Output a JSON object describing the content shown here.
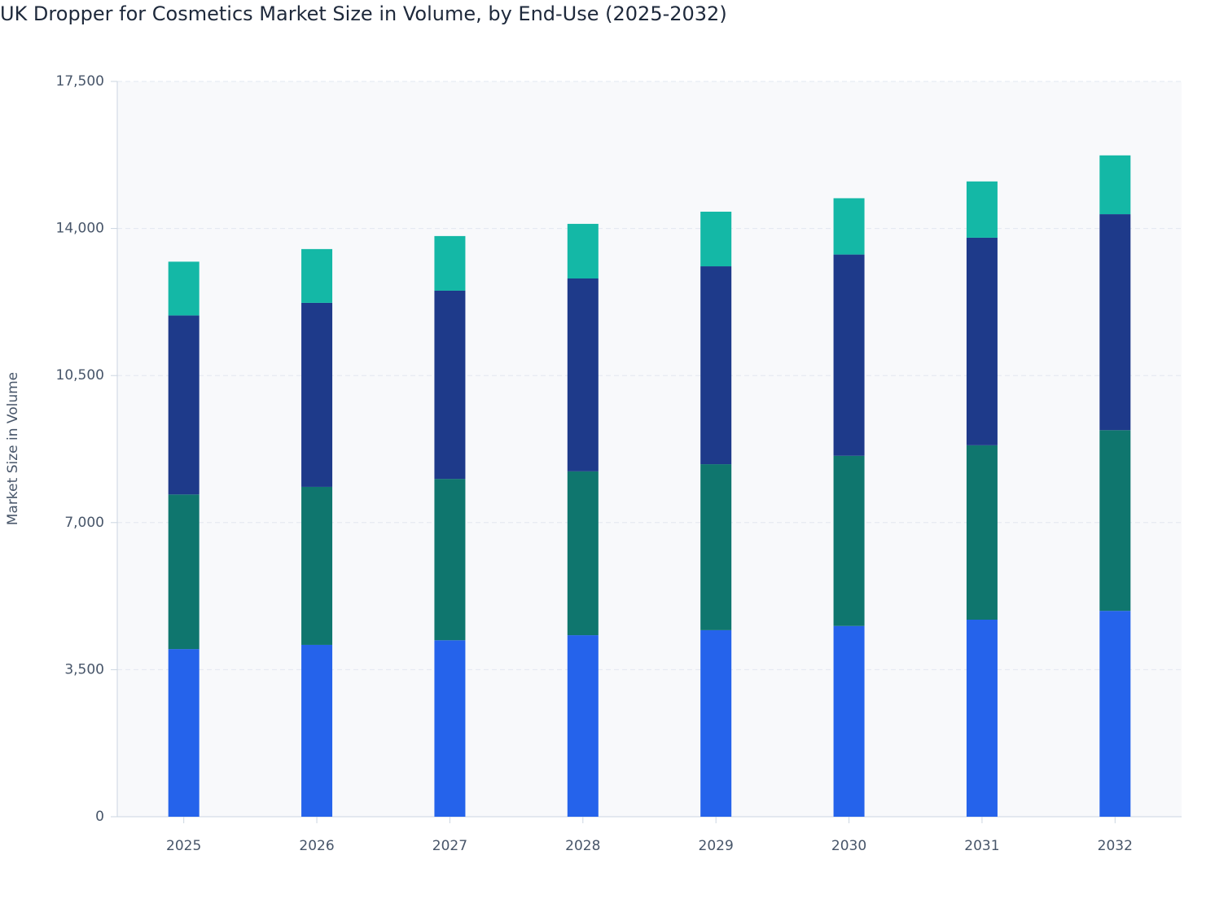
{
  "chart_data": {
    "type": "stacked_bar",
    "title": "UK Dropper for Cosmetics Market Size in Volume, by End-Use (2025-2032)",
    "y_label": "Market Size in Volume",
    "categories": [
      "2025",
      "2026",
      "2027",
      "2028",
      "2029",
      "2030",
      "2031",
      "2032"
    ],
    "series": [
      {
        "color": "#2563eb",
        "values": [
          3990,
          4090,
          4200,
          4320,
          4440,
          4540,
          4690,
          4900
        ]
      },
      {
        "color": "#0f766e",
        "values": [
          3680,
          3760,
          3840,
          3900,
          3950,
          4050,
          4150,
          4300
        ]
      },
      {
        "color": "#1e3a8a",
        "values": [
          4260,
          4380,
          4480,
          4590,
          4710,
          4790,
          4940,
          5140
        ]
      },
      {
        "color": "#14b8a6",
        "values": [
          1280,
          1280,
          1300,
          1300,
          1300,
          1340,
          1340,
          1400
        ]
      }
    ],
    "ylim": [
      0,
      17500
    ],
    "yticks": [
      0,
      {
        "value": 3500,
        "label": "3,500"
      },
      {
        "value": 7000,
        "label": "7,000"
      },
      {
        "value": 10500,
        "label": "10,500"
      },
      {
        "value": 14000,
        "label": "14,000"
      },
      {
        "value": 17500,
        "label": "17,500"
      }
    ],
    "grid": true
  }
}
